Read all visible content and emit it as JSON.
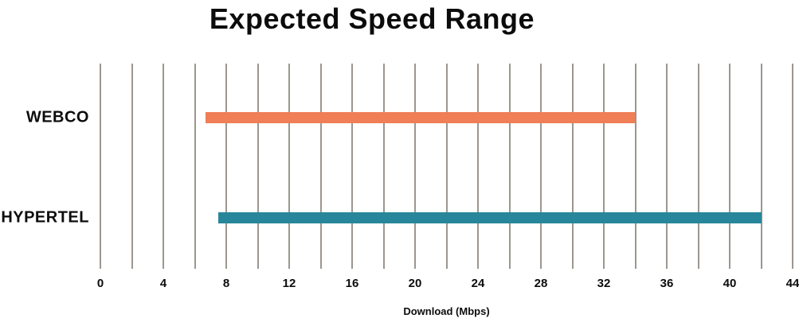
{
  "chart_data": {
    "type": "bar",
    "subtype": "horizontal_range_bar",
    "title": "Expected Speed Range",
    "xlabel": "Download (Mbps)",
    "categories": [
      "WEBCO",
      "HYPERTEL"
    ],
    "series": [
      {
        "name": "WEBCO",
        "range_min_mbps": 6.7,
        "range_max_mbps": 34,
        "color": "#F07E56"
      },
      {
        "name": "HYPERTEL",
        "range_min_mbps": 7.5,
        "range_max_mbps": 42,
        "color": "#28869A"
      }
    ],
    "xlim": [
      0,
      44
    ],
    "gridline_step": 2,
    "tick_label_step": 4,
    "tick_labels": [
      "0",
      "4",
      "8",
      "12",
      "16",
      "20",
      "24",
      "28",
      "32",
      "36",
      "40",
      "44"
    ],
    "grid": true,
    "grid_color": "#9C968F",
    "text_color": "#0c0c0c",
    "background_color": "#FFFFFF",
    "legend_position": "none"
  }
}
